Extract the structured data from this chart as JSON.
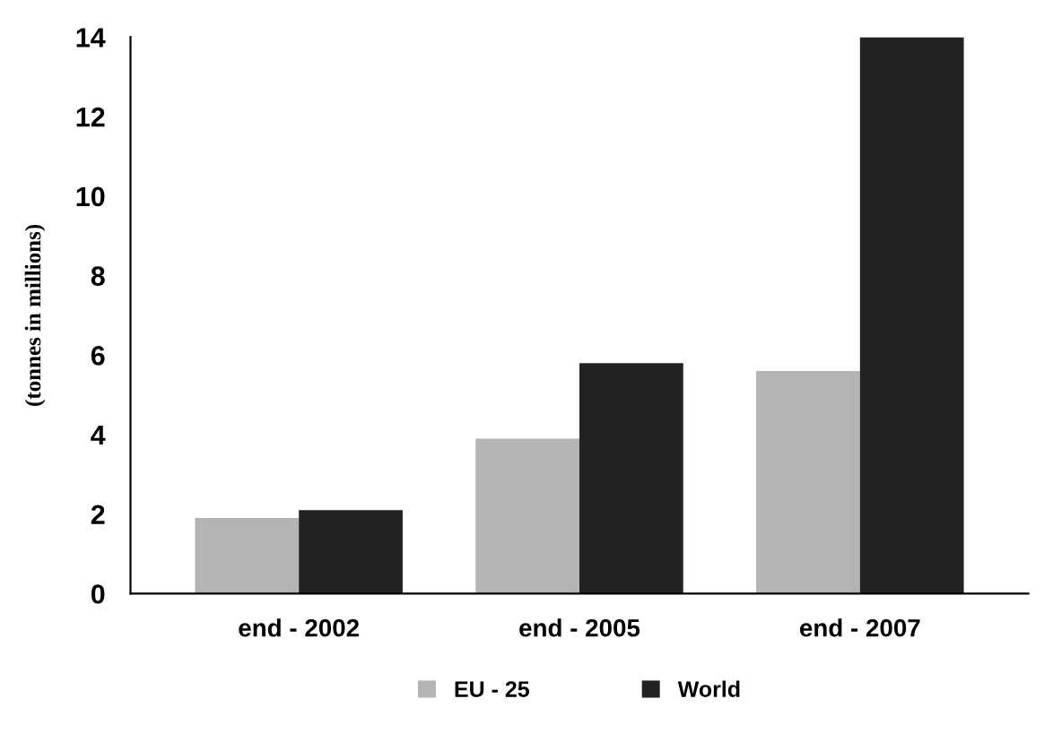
{
  "chart_data": {
    "type": "bar",
    "ylabel": "(tonnes in millions)",
    "categories": [
      "end - 2002",
      "end - 2005",
      "end - 2007"
    ],
    "series": [
      {
        "name": "EU - 25",
        "color": "#b4b4b4",
        "values": [
          1.9,
          3.9,
          5.6
        ]
      },
      {
        "name": "World",
        "color": "#222222",
        "values": [
          2.1,
          5.8,
          14
        ]
      }
    ],
    "ylim": [
      0,
      14
    ],
    "yticks": [
      0,
      2,
      4,
      6,
      8,
      10,
      12,
      14
    ],
    "grid": false,
    "legend": "bottom"
  }
}
